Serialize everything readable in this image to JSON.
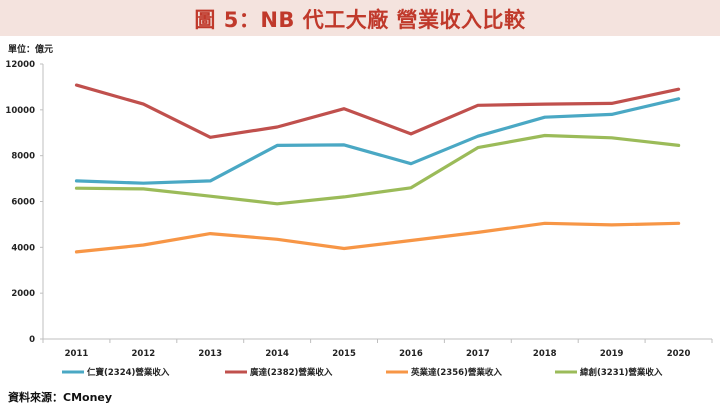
{
  "header": {
    "title": "圖 5：NB 代工大廠 營業收入比較",
    "unit": "單位：億元"
  },
  "footer": {
    "source": "資料來源：CMoney"
  },
  "colors": {
    "title_band": "#f4e3de",
    "title_text": "#c0392b"
  },
  "chart_data": {
    "type": "line",
    "title": "",
    "xlabel": "",
    "ylabel": "",
    "x": [
      "2011",
      "2012",
      "2013",
      "2014",
      "2015",
      "2016",
      "2017",
      "2018",
      "2019",
      "2020"
    ],
    "ylim": [
      0,
      12000
    ],
    "yticks": [
      0,
      2000,
      4000,
      6000,
      8000,
      10000,
      12000
    ],
    "grid": false,
    "legend_position": "bottom",
    "series": [
      {
        "name": "仁寶(2324)營業收入",
        "color": "#4aa8c4",
        "values": [
          6900,
          6800,
          6900,
          8450,
          8470,
          7650,
          8850,
          9680,
          9800,
          10480
        ]
      },
      {
        "name": "廣達(2382)營業收入",
        "color": "#c0504d",
        "values": [
          11080,
          10250,
          8800,
          9250,
          10050,
          8950,
          10200,
          10250,
          10280,
          10900
        ]
      },
      {
        "name": "英業達(2356)營業收入",
        "color": "#f79646",
        "values": [
          3800,
          4100,
          4600,
          4350,
          3950,
          4300,
          4650,
          5050,
          4980,
          5050
        ]
      },
      {
        "name": "緯創(3231)營業收入",
        "color": "#9bbb59",
        "values": [
          6580,
          6550,
          6230,
          5900,
          6200,
          6600,
          8350,
          8880,
          8780,
          8450
        ]
      }
    ]
  }
}
